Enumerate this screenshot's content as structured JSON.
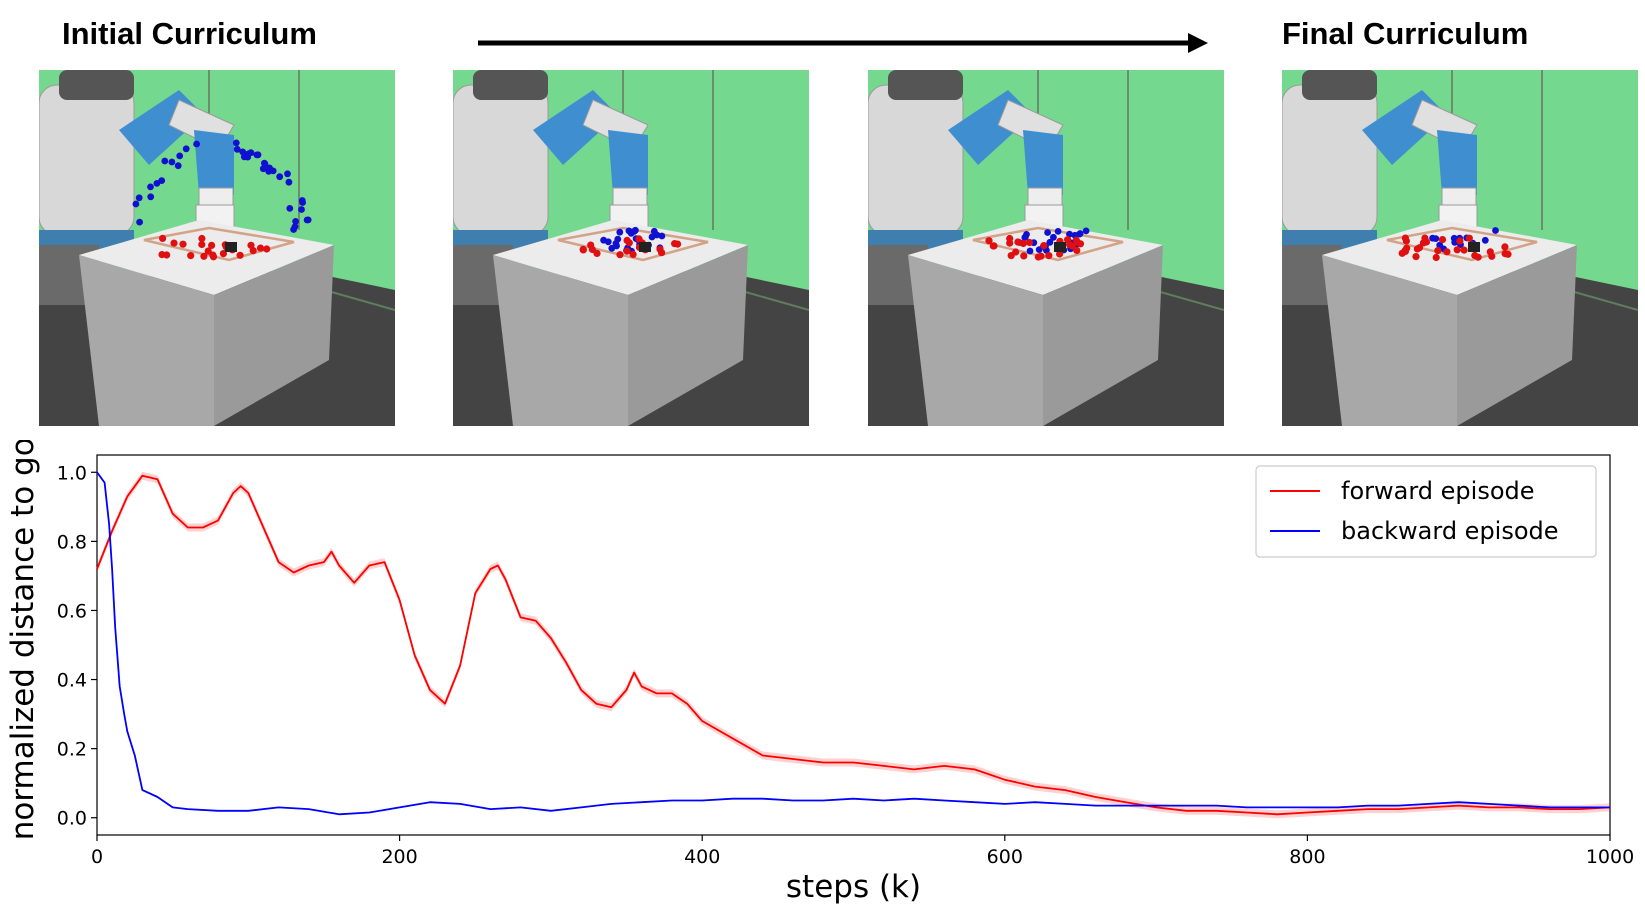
{
  "header": {
    "left_title": "Initial Curriculum",
    "right_title": "Final Curriculum"
  },
  "scenes": [
    {
      "stage": "initial",
      "colors": {
        "table": "#a8a8a8",
        "background": "#74d98e",
        "robot_arm": "#3f8fd0",
        "goal_dots": "#1010d0",
        "start_dots": "#e01010"
      }
    },
    {
      "stage": "intermediate-1"
    },
    {
      "stage": "intermediate-2"
    },
    {
      "stage": "final"
    }
  ],
  "chart_data": {
    "type": "line",
    "xlabel": "steps (k)",
    "ylabel": "normalized distance to goal",
    "xlim": [
      0,
      1000
    ],
    "ylim": [
      -0.05,
      1.05
    ],
    "xticks": [
      0,
      200,
      400,
      600,
      800,
      1000
    ],
    "yticks": [
      0.0,
      0.2,
      0.4,
      0.6,
      0.8,
      1.0
    ],
    "ytick_labels": [
      "0.0",
      "0.2",
      "0.4",
      "0.6",
      "0.8",
      "1.0"
    ],
    "legend_position": "upper-right",
    "series": [
      {
        "name": "forward episode",
        "color": "#ff0000",
        "shaded_band": true,
        "x": [
          0,
          10,
          20,
          30,
          40,
          50,
          60,
          70,
          80,
          90,
          95,
          100,
          110,
          120,
          130,
          140,
          150,
          155,
          160,
          170,
          180,
          190,
          200,
          210,
          220,
          230,
          240,
          250,
          260,
          265,
          270,
          280,
          290,
          300,
          310,
          320,
          330,
          340,
          350,
          355,
          360,
          370,
          380,
          390,
          400,
          420,
          440,
          460,
          480,
          500,
          520,
          540,
          560,
          580,
          600,
          620,
          640,
          660,
          680,
          700,
          720,
          740,
          760,
          780,
          800,
          820,
          840,
          860,
          880,
          900,
          920,
          940,
          960,
          980,
          1000
        ],
        "y": [
          0.72,
          0.83,
          0.93,
          0.99,
          0.98,
          0.88,
          0.84,
          0.84,
          0.86,
          0.94,
          0.96,
          0.94,
          0.84,
          0.74,
          0.71,
          0.73,
          0.74,
          0.77,
          0.73,
          0.68,
          0.73,
          0.74,
          0.63,
          0.47,
          0.37,
          0.33,
          0.44,
          0.65,
          0.72,
          0.73,
          0.69,
          0.58,
          0.57,
          0.52,
          0.45,
          0.37,
          0.33,
          0.32,
          0.37,
          0.42,
          0.38,
          0.36,
          0.36,
          0.33,
          0.28,
          0.23,
          0.18,
          0.17,
          0.16,
          0.16,
          0.15,
          0.14,
          0.15,
          0.14,
          0.11,
          0.09,
          0.08,
          0.06,
          0.045,
          0.03,
          0.02,
          0.02,
          0.015,
          0.01,
          0.015,
          0.02,
          0.025,
          0.025,
          0.03,
          0.035,
          0.03,
          0.03,
          0.025,
          0.025,
          0.03
        ]
      },
      {
        "name": "backward episode",
        "color": "#0000ff",
        "x": [
          0,
          5,
          8,
          10,
          12,
          15,
          18,
          20,
          25,
          30,
          35,
          40,
          50,
          60,
          80,
          100,
          120,
          140,
          160,
          180,
          200,
          220,
          240,
          260,
          280,
          300,
          320,
          340,
          360,
          380,
          400,
          420,
          440,
          460,
          480,
          500,
          520,
          540,
          560,
          580,
          600,
          620,
          640,
          660,
          680,
          700,
          720,
          740,
          760,
          780,
          800,
          820,
          840,
          860,
          880,
          900,
          920,
          940,
          960,
          980,
          1000
        ],
        "y": [
          1.0,
          0.97,
          0.85,
          0.72,
          0.55,
          0.38,
          0.3,
          0.25,
          0.18,
          0.08,
          0.07,
          0.06,
          0.03,
          0.025,
          0.02,
          0.02,
          0.03,
          0.025,
          0.01,
          0.015,
          0.03,
          0.045,
          0.04,
          0.025,
          0.03,
          0.02,
          0.03,
          0.04,
          0.045,
          0.05,
          0.05,
          0.055,
          0.055,
          0.05,
          0.05,
          0.055,
          0.05,
          0.055,
          0.05,
          0.045,
          0.04,
          0.045,
          0.04,
          0.035,
          0.035,
          0.035,
          0.035,
          0.035,
          0.03,
          0.03,
          0.03,
          0.03,
          0.035,
          0.035,
          0.04,
          0.045,
          0.04,
          0.035,
          0.03,
          0.03,
          0.03
        ]
      }
    ]
  }
}
